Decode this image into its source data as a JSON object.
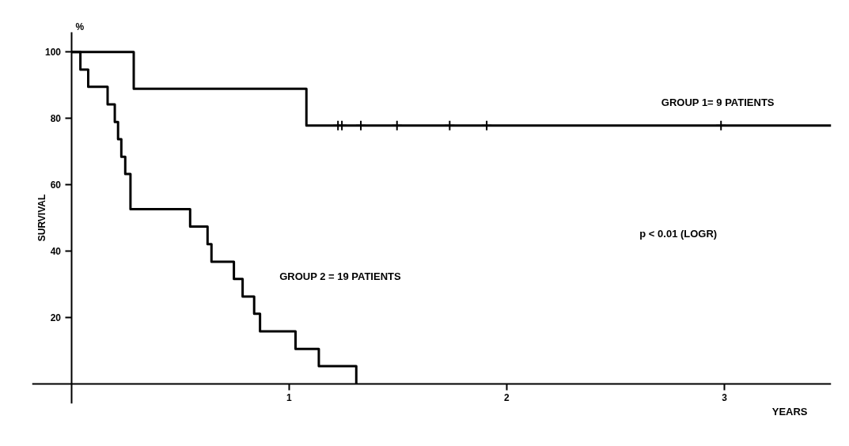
{
  "chart_data": {
    "type": "step",
    "xlabel": "YEARS",
    "ylabel": "SURVIVAL",
    "xlim": [
      -0.18,
      3.49
    ],
    "ylim": [
      -6,
      106
    ],
    "xticks": [
      1,
      2,
      3
    ],
    "yticks": [
      20,
      40,
      60,
      80,
      100
    ],
    "grid": false,
    "series": [
      {
        "color": "#000000",
        "x": [
          0,
          0.287,
          1.08,
          3.49
        ],
        "values": [
          100,
          88.9,
          77.8,
          77.8
        ]
      },
      {
        "color": "#000000",
        "x": [
          0,
          0.042,
          0.078,
          0.167,
          0.2,
          0.215,
          0.23,
          0.248,
          0.272,
          0.546,
          0.626,
          0.644,
          0.747,
          0.787,
          0.84,
          0.867,
          1.03,
          1.137,
          1.309
        ],
        "values": [
          100,
          94.7,
          89.5,
          84.2,
          78.9,
          73.7,
          68.4,
          63.2,
          52.6,
          47.4,
          42.1,
          36.8,
          31.6,
          26.3,
          21.1,
          15.8,
          10.5,
          5.3,
          0
        ]
      },
      {
        "type": "scatter",
        "marker": "cross",
        "color": "#000000",
        "x": [
          1.225,
          1.243,
          1.33,
          1.496,
          1.738,
          1.908,
          2.984
        ],
        "values": [
          77.8,
          77.8,
          77.8,
          77.8,
          77.8,
          77.8,
          77.8
        ]
      }
    ],
    "annotations": [
      "%",
      "GROUP 1= 9 PATIENTS",
      "GROUP 2 = 19 PATIENTS",
      "p < 0.01 (LOGR)"
    ]
  }
}
